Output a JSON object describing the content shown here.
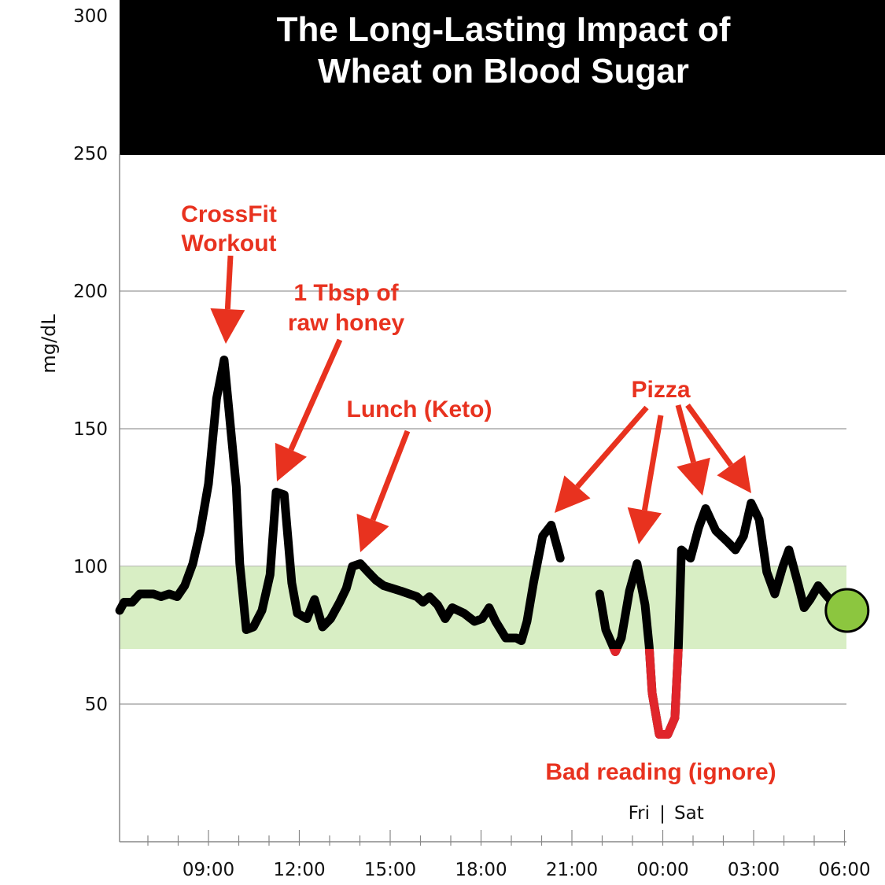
{
  "chart_data": {
    "type": "line",
    "title": [
      "The Long-Lasting Impact of",
      "Wheat on Blood Sugar"
    ],
    "ylabel": "mg/dL",
    "xlabel": "",
    "ylim": [
      0,
      300
    ],
    "yticks": [
      50,
      100,
      150,
      200,
      250,
      300
    ],
    "xticks": [
      "09:00",
      "12:00",
      "15:00",
      "18:00",
      "21:00",
      "00:00",
      "03:00",
      "06:00"
    ],
    "day_divider": {
      "left": "Fri",
      "separator": "|",
      "right": "Sat"
    },
    "target_range": [
      70,
      100
    ],
    "low_color": "#e0252b",
    "line_color": "#000000",
    "range_color": "#d8eec4",
    "current_marker_color": "#8cc63f",
    "grid": true,
    "series": [
      {
        "segment": 1,
        "points": [
          [
            "Fri 06:04",
            84
          ],
          [
            "Fri 06:13",
            87
          ],
          [
            "Fri 06:29",
            87
          ],
          [
            "Fri 06:44",
            90
          ],
          [
            "Fri 07:11",
            90
          ],
          [
            "Fri 07:26",
            89
          ],
          [
            "Fri 07:42",
            90
          ],
          [
            "Fri 07:58",
            89
          ],
          [
            "Fri 08:13",
            93
          ],
          [
            "Fri 08:29",
            101
          ],
          [
            "Fri 08:44",
            113
          ],
          [
            "Fri 09:00",
            130
          ],
          [
            "Fri 09:16",
            161
          ],
          [
            "Fri 09:31",
            175
          ],
          [
            "Fri 09:55",
            129
          ],
          [
            "Fri 10:02",
            101
          ],
          [
            "Fri 10:15",
            77
          ],
          [
            "Fri 10:29",
            78
          ],
          [
            "Fri 10:46",
            84
          ],
          [
            "Fri 11:02",
            97
          ],
          [
            "Fri 11:14",
            127
          ],
          [
            "Fri 11:30",
            126
          ],
          [
            "Fri 11:45",
            94
          ],
          [
            "Fri 11:56",
            83
          ],
          [
            "Fri 12:15",
            81
          ],
          [
            "Fri 12:30",
            88
          ],
          [
            "Fri 12:46",
            78
          ],
          [
            "Fri 13:02",
            81
          ],
          [
            "Fri 13:20",
            87
          ],
          [
            "Fri 13:33",
            92
          ],
          [
            "Fri 13:45",
            100
          ],
          [
            "Fri 14:01",
            101
          ],
          [
            "Fri 14:16",
            98
          ],
          [
            "Fri 14:32",
            95
          ],
          [
            "Fri 14:47",
            93
          ],
          [
            "Fri 15:22",
            91
          ],
          [
            "Fri 15:53",
            89
          ],
          [
            "Fri 16:05",
            87
          ],
          [
            "Fri 16:18",
            89
          ],
          [
            "Fri 16:34",
            86
          ],
          [
            "Fri 16:49",
            81
          ],
          [
            "Fri 17:03",
            85
          ],
          [
            "Fri 17:26",
            83
          ],
          [
            "Fri 17:47",
            80
          ],
          [
            "Fri 18:02",
            81
          ],
          [
            "Fri 18:16",
            85
          ],
          [
            "Fri 18:29",
            80
          ],
          [
            "Fri 18:49",
            74
          ],
          [
            "Fri 19:10",
            74
          ],
          [
            "Fri 19:20",
            73
          ],
          [
            "Fri 19:31",
            80
          ],
          [
            "Fri 19:44",
            94
          ],
          [
            "Fri 20:02",
            111
          ],
          [
            "Fri 20:19",
            115
          ],
          [
            "Fri 20:37",
            103
          ]
        ]
      },
      {
        "segment": 2,
        "points": [
          [
            "Fri 21:55",
            90
          ],
          [
            "Fri 22:07",
            77
          ],
          [
            "Fri 22:26",
            69
          ],
          [
            "Fri 22:38",
            74
          ],
          [
            "Fri 22:54",
            91
          ],
          [
            "Fri 23:09",
            101
          ],
          [
            "Fri 23:25",
            86
          ],
          [
            "Fri 23:33",
            71
          ],
          [
            "Fri 23:39",
            54
          ],
          [
            "Fri 23:53",
            39
          ],
          [
            "Sat 00:10",
            39
          ],
          [
            "Sat 00:24",
            45
          ],
          [
            "Sat 00:31",
            71
          ],
          [
            "Sat 00:37",
            106
          ],
          [
            "Sat 00:55",
            103
          ],
          [
            "Sat 01:11",
            114
          ],
          [
            "Sat 01:25",
            121
          ],
          [
            "Sat 01:45",
            113
          ],
          [
            "Sat 02:08",
            109
          ],
          [
            "Sat 02:24",
            106
          ],
          [
            "Sat 02:40",
            111
          ],
          [
            "Sat 02:55",
            123
          ],
          [
            "Sat 03:11",
            117
          ],
          [
            "Sat 03:26",
            98
          ],
          [
            "Sat 03:42",
            90
          ],
          [
            "Sat 03:58",
            100
          ],
          [
            "Sat 04:10",
            106
          ],
          [
            "Sat 04:29",
            93
          ],
          [
            "Sat 04:40",
            85
          ],
          [
            "Sat 04:52",
            88
          ],
          [
            "Sat 05:08",
            93
          ],
          [
            "Sat 05:26",
            89
          ],
          [
            "Sat 05:42",
            86
          ]
        ]
      }
    ],
    "current_reading": [
      "Sat 06:02",
      84
    ],
    "annotations": [
      {
        "lines": [
          "CrossFit",
          "Workout"
        ],
        "color": "#e8321f"
      },
      {
        "lines": [
          "1 Tbsp of",
          "raw honey"
        ],
        "color": "#e8321f"
      },
      {
        "lines": [
          "Lunch (Keto)"
        ],
        "color": "#e8321f"
      },
      {
        "lines": [
          "Pizza"
        ],
        "color": "#e8321f"
      },
      {
        "lines": [
          "Bad reading (ignore)"
        ],
        "color": "#e8321f"
      }
    ]
  }
}
